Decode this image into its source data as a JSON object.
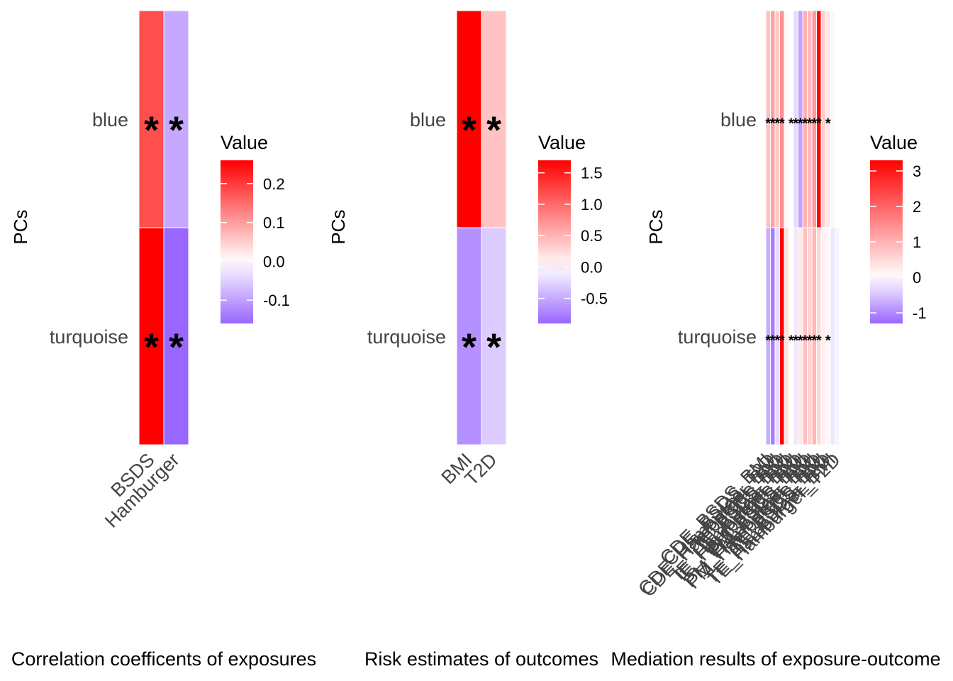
{
  "chart_data": [
    {
      "type": "heatmap",
      "xlabel": "Correlation coefficents of exposures",
      "ylabel": "PCs",
      "rows": [
        "blue",
        "turquoise"
      ],
      "columns": [
        "BSDS",
        "Hamburger"
      ],
      "values": [
        [
          0.18,
          -0.09
        ],
        [
          0.26,
          -0.16
        ]
      ],
      "significance": [
        [
          "*",
          "*"
        ],
        [
          "*",
          "*"
        ]
      ],
      "legend": {
        "title": "Value",
        "position": "right",
        "ticks": [
          0.2,
          0.1,
          0.0,
          -0.1
        ],
        "range": [
          -0.16,
          0.26
        ]
      },
      "grid": false
    },
    {
      "type": "heatmap",
      "xlabel": "Risk estimates of outcomes",
      "ylabel": "PCs",
      "rows": [
        "blue",
        "turquoise"
      ],
      "columns": [
        "BMI",
        "T2D"
      ],
      "values": [
        [
          1.7,
          0.4
        ],
        [
          -0.65,
          -0.3
        ]
      ],
      "significance": [
        [
          "*",
          "*"
        ],
        [
          "*",
          "*"
        ]
      ],
      "legend": {
        "title": "Value",
        "position": "right",
        "ticks": [
          1.5,
          1.0,
          0.5,
          0.0,
          -0.5
        ],
        "range": [
          -0.9,
          1.7
        ]
      },
      "grid": false
    },
    {
      "type": "heatmap",
      "xlabel": "Mediation results of exposure-outcome",
      "ylabel": "PCs",
      "rows": [
        "blue",
        "turquoise"
      ],
      "columns": [
        "CDE_BSDS_BMI",
        "CDE_BSDS_T2D",
        "CDE_Hamburger_BMI",
        "CDE_Hamburger_T2D",
        "IE_BSDS_BMI",
        "IE_BSDS_T2D",
        "IE_Hamburger_BMI",
        "IE_Hamburger_T2D",
        "PM_BSDS_BMI",
        "PM_BSDS_T2D",
        "PM_Hamburger_BMI",
        "PM_Hamburger_T2D",
        "TE_BSDS_BMI",
        "TE_BSDS_T2D",
        "TE_Hamburger_BMI",
        "TE_Hamburger_T2D"
      ],
      "values": [
        [
          0.8,
          1.2,
          0.7,
          1.4,
          0.1,
          0.0,
          -0.3,
          -0.8,
          1.0,
          0.9,
          1.3,
          3.2,
          0.6,
          0.3,
          0.1,
          0.0
        ],
        [
          -0.7,
          -1.1,
          -0.3,
          3.3,
          0.4,
          0.0,
          -0.2,
          0.3,
          0.8,
          0.6,
          0.9,
          0.5,
          0.2,
          0.1,
          -0.2,
          -0.1
        ]
      ],
      "significance": [
        [
          "*",
          "*",
          "*",
          "*",
          "",
          "*",
          "*",
          "*",
          "*",
          "*",
          "*",
          "*",
          "",
          "*",
          "",
          ""
        ],
        [
          "*",
          "*",
          "*",
          "*",
          "",
          "*",
          "*",
          "*",
          "*",
          "*",
          "*",
          "*",
          "",
          "*",
          "",
          ""
        ]
      ],
      "legend": {
        "title": "Value",
        "position": "right",
        "ticks": [
          3,
          2,
          1,
          0,
          -1
        ],
        "range": [
          -1.3,
          3.3
        ]
      },
      "grid": false
    }
  ]
}
